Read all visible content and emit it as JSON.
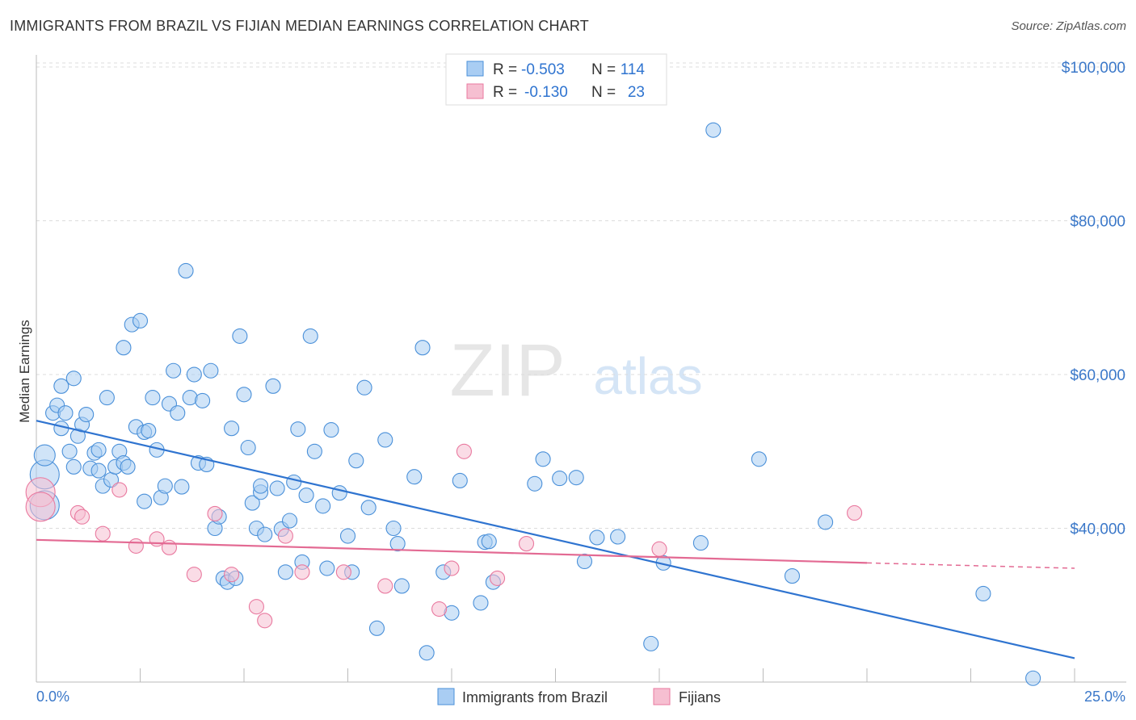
{
  "header": {
    "title": "IMMIGRANTS FROM BRAZIL VS FIJIAN MEDIAN EARNINGS CORRELATION CHART",
    "source": "Source: ZipAtlas.com"
  },
  "watermark": {
    "zip": "ZIP",
    "atlas": "atlas"
  },
  "colors": {
    "blue": "#4a90d9",
    "blue_fill": "#a9cdf3",
    "pink": "#e9799f",
    "pink_fill": "#f6bfd1",
    "blue_line": "#2f74d0",
    "pink_line": "#e36a93",
    "axis_text": "#3b78c9"
  },
  "legend": {
    "rows": [
      {
        "r_label": "R =",
        "r_value": "-0.503",
        "n_label": "N =",
        "n_value": "114"
      },
      {
        "r_label": "R =",
        "r_value": "-0.130",
        "n_label": "N =",
        "n_value": "23"
      }
    ]
  },
  "chart_data": {
    "type": "scatter",
    "title": "IMMIGRANTS FROM BRAZIL VS FIJIAN MEDIAN EARNINGS CORRELATION CHART",
    "xlabel": "",
    "ylabel": "Median Earnings",
    "xlim": [
      0,
      25
    ],
    "ylim": [
      20000,
      102000
    ],
    "x_tick_labels": [
      "0.0%",
      "25.0%"
    ],
    "y_ticks": [
      40000,
      60000,
      80000,
      100000
    ],
    "y_tick_labels": [
      "$40,000",
      "$60,000",
      "$80,000",
      "$100,000"
    ],
    "grid": true,
    "legend_position": "top-center",
    "series": [
      {
        "name": "Immigrants from Brazil",
        "R": -0.503,
        "N": 114,
        "trend": {
          "x": [
            0,
            25
          ],
          "y": [
            54000,
            23100
          ]
        },
        "points": [
          [
            0.2,
            43000,
            "l"
          ],
          [
            0.2,
            47000,
            "l"
          ],
          [
            0.2,
            49500,
            "m"
          ],
          [
            0.4,
            55000
          ],
          [
            0.5,
            56000
          ],
          [
            0.6,
            53000
          ],
          [
            0.6,
            58500
          ],
          [
            0.7,
            55000
          ],
          [
            0.8,
            50000
          ],
          [
            0.9,
            48000
          ],
          [
            0.9,
            59500
          ],
          [
            1.0,
            52000
          ],
          [
            1.1,
            53500
          ],
          [
            1.2,
            54800
          ],
          [
            1.3,
            47800
          ],
          [
            1.4,
            49800
          ],
          [
            1.5,
            50200
          ],
          [
            1.5,
            47500
          ],
          [
            1.6,
            45500
          ],
          [
            1.7,
            57000
          ],
          [
            1.8,
            46300
          ],
          [
            1.9,
            48000
          ],
          [
            2.0,
            50000
          ],
          [
            2.1,
            63500
          ],
          [
            2.1,
            48500
          ],
          [
            2.2,
            48000
          ],
          [
            2.3,
            66500
          ],
          [
            2.4,
            53200
          ],
          [
            2.5,
            67000
          ],
          [
            2.6,
            43500
          ],
          [
            2.6,
            52500
          ],
          [
            2.7,
            52700
          ],
          [
            2.8,
            57000
          ],
          [
            2.9,
            50200
          ],
          [
            3.0,
            44000
          ],
          [
            3.1,
            45500
          ],
          [
            3.2,
            56200
          ],
          [
            3.3,
            60500
          ],
          [
            3.4,
            55000
          ],
          [
            3.5,
            45400
          ],
          [
            3.6,
            73500
          ],
          [
            3.7,
            57000
          ],
          [
            3.8,
            60000
          ],
          [
            3.9,
            48500
          ],
          [
            4.0,
            56600
          ],
          [
            4.1,
            48300
          ],
          [
            4.2,
            60500
          ],
          [
            4.3,
            40000
          ],
          [
            4.4,
            41500
          ],
          [
            4.5,
            33500
          ],
          [
            4.6,
            33000
          ],
          [
            4.7,
            53000
          ],
          [
            4.8,
            33500
          ],
          [
            4.9,
            65000
          ],
          [
            5.0,
            57400
          ],
          [
            5.1,
            50500
          ],
          [
            5.2,
            43300
          ],
          [
            5.3,
            40000
          ],
          [
            5.4,
            44700
          ],
          [
            5.4,
            45500
          ],
          [
            5.5,
            39200
          ],
          [
            5.7,
            58500
          ],
          [
            5.8,
            45200
          ],
          [
            5.9,
            39900
          ],
          [
            6.0,
            34300
          ],
          [
            6.1,
            41000
          ],
          [
            6.2,
            46000
          ],
          [
            6.3,
            52900
          ],
          [
            6.4,
            35600
          ],
          [
            6.5,
            44300
          ],
          [
            6.6,
            65000
          ],
          [
            6.7,
            50000
          ],
          [
            6.9,
            42900
          ],
          [
            7.0,
            34800
          ],
          [
            7.1,
            52800
          ],
          [
            7.3,
            44600
          ],
          [
            7.5,
            39000
          ],
          [
            7.6,
            34300
          ],
          [
            7.7,
            48800
          ],
          [
            7.9,
            58300
          ],
          [
            8.0,
            42700
          ],
          [
            8.2,
            27000
          ],
          [
            8.4,
            51500
          ],
          [
            8.6,
            40000
          ],
          [
            8.7,
            38000
          ],
          [
            8.8,
            32500
          ],
          [
            9.1,
            46700
          ],
          [
            9.3,
            63500
          ],
          [
            9.4,
            23800
          ],
          [
            9.8,
            34300
          ],
          [
            10.0,
            29000
          ],
          [
            10.2,
            46200
          ],
          [
            10.7,
            30300
          ],
          [
            10.8,
            38200
          ],
          [
            10.9,
            38300
          ],
          [
            11.0,
            33000
          ],
          [
            12.0,
            45800
          ],
          [
            12.2,
            49000
          ],
          [
            12.6,
            46500
          ],
          [
            13.0,
            46600
          ],
          [
            13.2,
            35700
          ],
          [
            13.5,
            38800
          ],
          [
            14.0,
            38900
          ],
          [
            14.8,
            25000
          ],
          [
            15.1,
            35500
          ],
          [
            16.0,
            38100
          ],
          [
            16.3,
            91800
          ],
          [
            17.4,
            49000
          ],
          [
            18.2,
            33800
          ],
          [
            19.0,
            40800
          ],
          [
            22.8,
            31500
          ],
          [
            24.0,
            20500
          ]
        ]
      },
      {
        "name": "Fijians",
        "R": -0.13,
        "N": 23,
        "trend": {
          "x": [
            0,
            20
          ],
          "y": [
            38500,
            35500
          ],
          "dashed_to": {
            "x": 25,
            "y": 34800
          }
        },
        "points": [
          [
            0.1,
            44700,
            "l"
          ],
          [
            0.1,
            42800,
            "l"
          ],
          [
            1.0,
            42000
          ],
          [
            1.1,
            41500
          ],
          [
            1.6,
            39300
          ],
          [
            2.0,
            45000
          ],
          [
            2.4,
            37700
          ],
          [
            2.9,
            38600
          ],
          [
            3.2,
            37500
          ],
          [
            3.8,
            34000
          ],
          [
            4.3,
            41900
          ],
          [
            4.7,
            34000
          ],
          [
            5.3,
            29800
          ],
          [
            5.5,
            28000
          ],
          [
            6.0,
            39000
          ],
          [
            6.4,
            34300
          ],
          [
            7.4,
            34300
          ],
          [
            8.4,
            32500
          ],
          [
            9.7,
            29500
          ],
          [
            10.0,
            34800
          ],
          [
            10.3,
            50000
          ],
          [
            11.1,
            33500
          ],
          [
            11.8,
            38000
          ],
          [
            15.0,
            37300
          ],
          [
            19.7,
            42000
          ]
        ]
      }
    ]
  },
  "bottom_legend": {
    "items": [
      "Immigrants from Brazil",
      "Fijians"
    ]
  }
}
